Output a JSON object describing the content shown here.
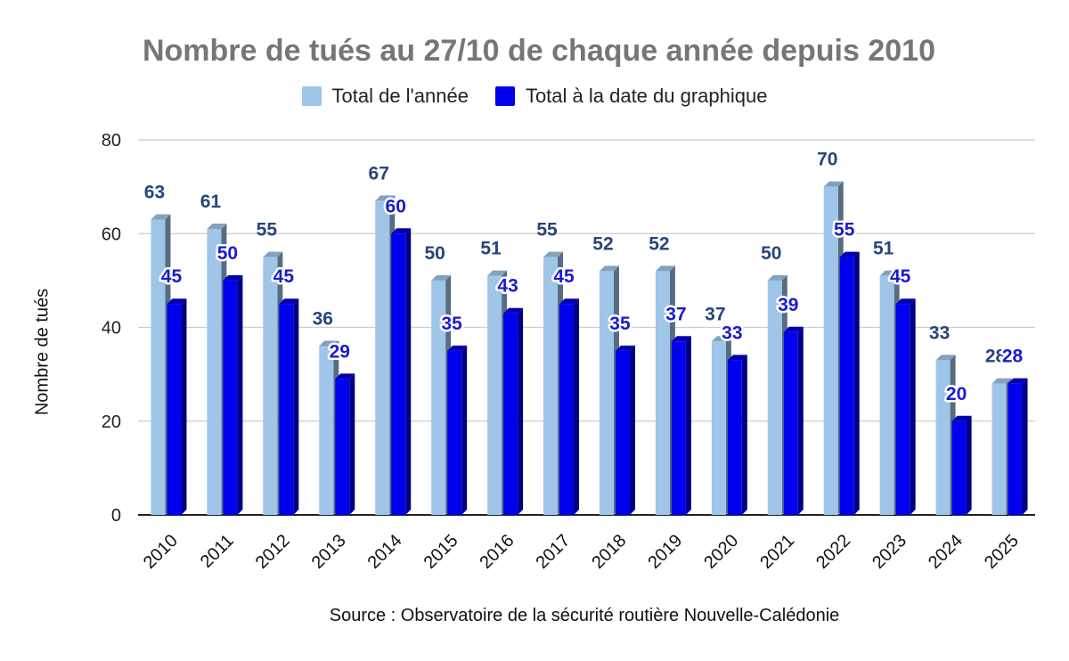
{
  "chart_data": {
    "type": "bar",
    "title": "Nombre de tués au 27/10 de chaque année depuis 2010",
    "ylabel": "Nombre de tués",
    "xlabel": "",
    "source": "Source : Observatoire de la sécurité routière Nouvelle-Calédonie",
    "categories": [
      "2010",
      "2011",
      "2012",
      "2013",
      "2014",
      "2015",
      "2016",
      "2017",
      "2018",
      "2019",
      "2020",
      "2021",
      "2022",
      "2023",
      "2024",
      "2025"
    ],
    "series": [
      {
        "name": "Total de l'année",
        "color": "#9fc5e8",
        "values": [
          63,
          61,
          55,
          36,
          67,
          50,
          51,
          55,
          52,
          52,
          37,
          50,
          70,
          51,
          33,
          28
        ]
      },
      {
        "name": "Total à la date du graphique",
        "color": "#0000ee",
        "values": [
          45,
          50,
          45,
          29,
          60,
          35,
          43,
          45,
          35,
          37,
          33,
          39,
          55,
          45,
          20,
          28
        ]
      }
    ],
    "ylim": [
      0,
      80
    ],
    "yticks": [
      0,
      20,
      40,
      60,
      80
    ],
    "grid": true,
    "legend_position": "top"
  }
}
